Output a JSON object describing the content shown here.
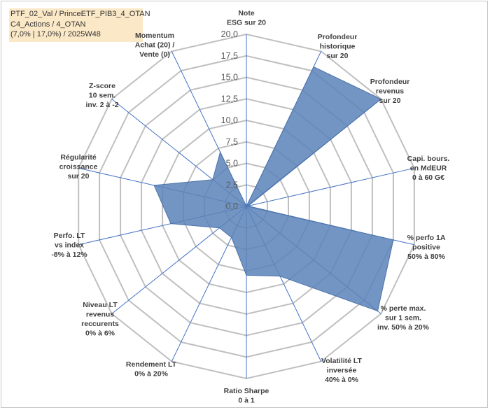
{
  "title_lines": [
    "PTF_02_Val / PrinceETF_PIB3_4_OTAN",
    "C4_Actions / 4_OTAN",
    "(7,0% | 17,0%) / 2025W48"
  ],
  "chart_data": {
    "type": "radar",
    "rmin": 0,
    "rmax": 20,
    "tick_labels": [
      "0,0",
      "2,5",
      "5,0",
      "7,5",
      "10,0",
      "12,5",
      "15,0",
      "17,5",
      "20,0"
    ],
    "axes": [
      [
        "Note",
        "ESG sur 20"
      ],
      [
        "Profondeur",
        "historique",
        "sur 20"
      ],
      [
        "Profondeur",
        "revenus",
        "sur 20"
      ],
      [
        "Capi. bours.",
        "en MdEUR",
        "0 à 60 G€"
      ],
      [
        "% perfo 1A",
        "positive",
        "50% à 80%"
      ],
      [
        "% perte max.",
        "sur 1 sem.",
        "inv. 50% à 20%"
      ],
      [
        "Volatilité LT",
        "inversée",
        "40% à 0%"
      ],
      [
        "Ratio Sharpe",
        "0 à 1"
      ],
      [
        "Rendement LT",
        "0% à 20%"
      ],
      [
        "Niveau LT",
        "revenus",
        "reccurents",
        "0% à 6%"
      ],
      [
        "Perfo. LT",
        "vs index",
        "-8% à 12%"
      ],
      [
        "Régularité",
        "croissance",
        "sur 20"
      ],
      [
        "Z-score",
        "10 sem.",
        "inv. 2 à -2"
      ],
      [
        "Momentum",
        "Achat (20) /",
        "Vente (0)"
      ]
    ],
    "series": [
      {
        "values": [
          0,
          18,
          20,
          0.2,
          17.5,
          19.5,
          9,
          8,
          4,
          4,
          9,
          11,
          5,
          7
        ]
      }
    ],
    "colors": {
      "fill": "#5a82b8",
      "stroke": "#4a72a8",
      "grid": "#bfbfbf",
      "spoke": "#4472c4"
    }
  }
}
